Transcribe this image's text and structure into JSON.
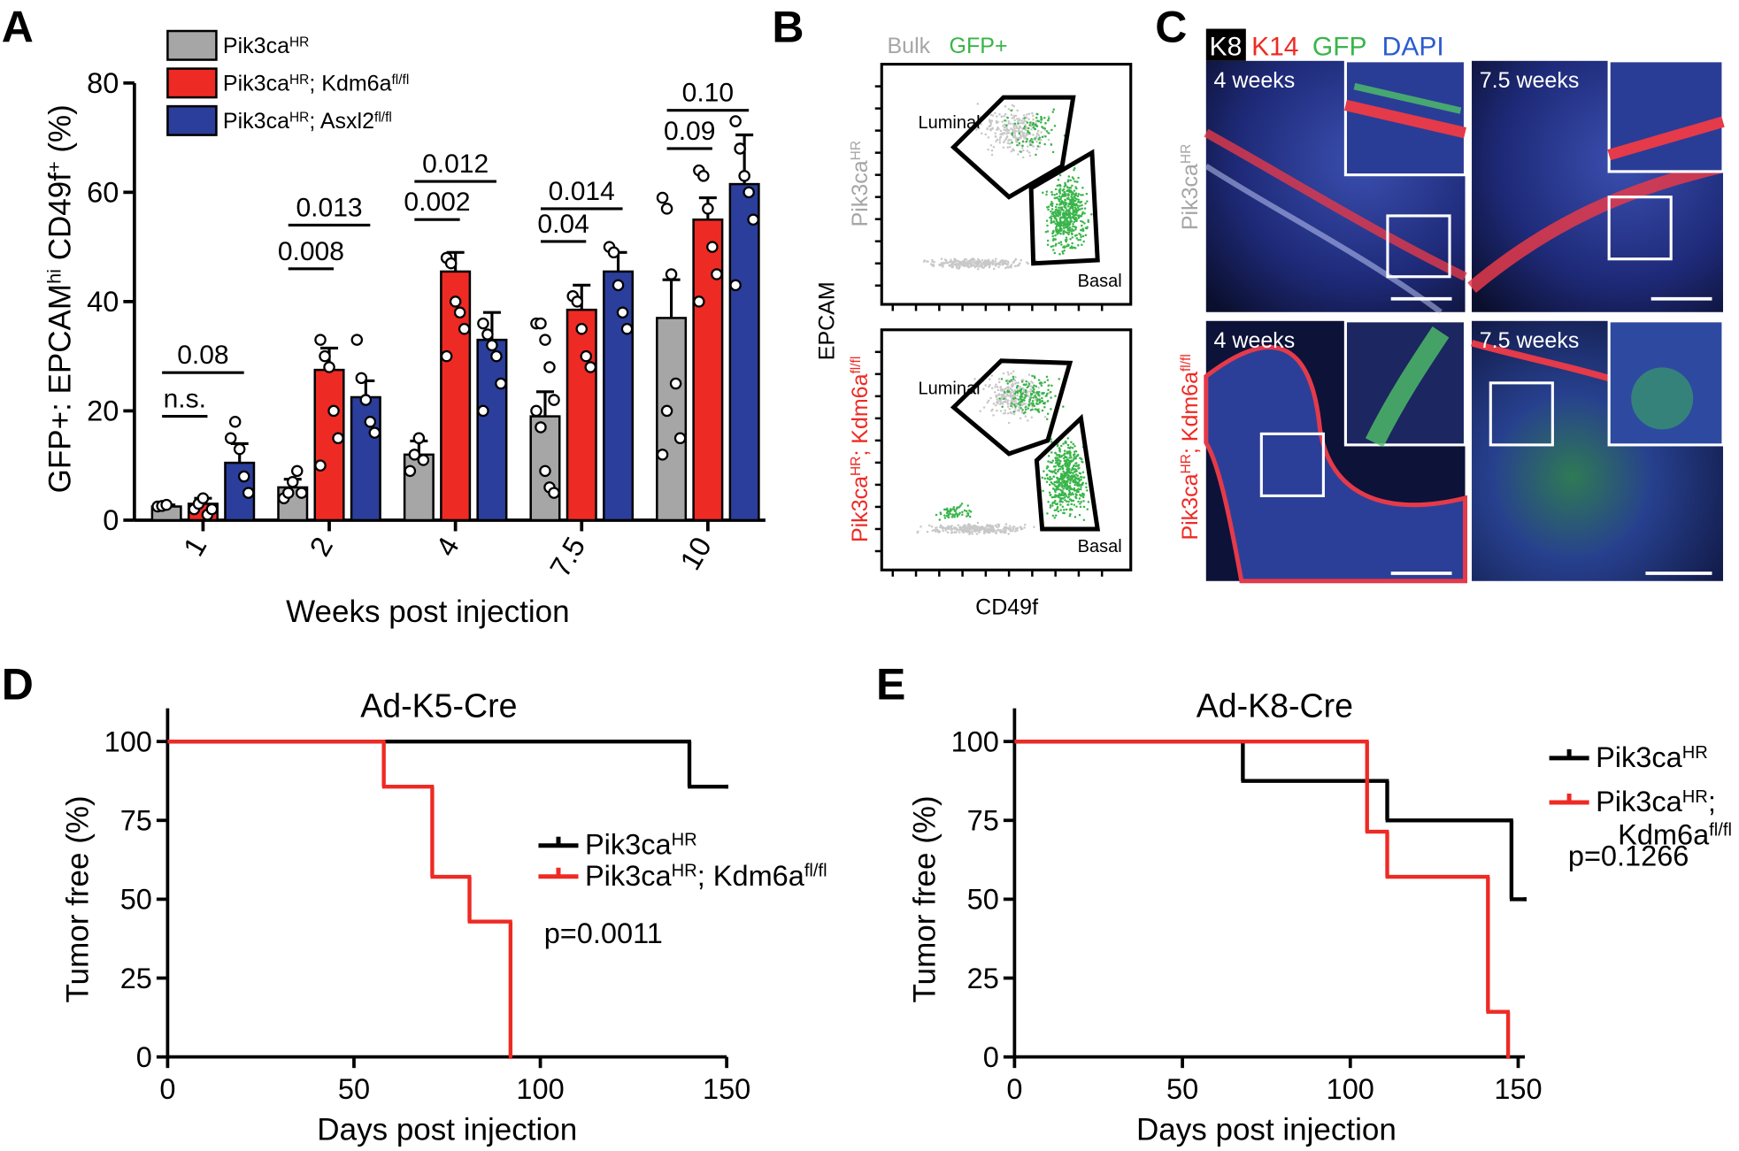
{
  "chart_data": [
    {
      "type": "bar",
      "panel_label": "A",
      "y_label": [
        "GFP+: EPCAM",
        "hi",
        " CD49f",
        "+",
        " (%)"
      ],
      "x_label": "Weeks post injection",
      "categories": [
        "1",
        "2",
        "4",
        "7.5",
        "10"
      ],
      "ylim": [
        0,
        80
      ],
      "yticks": [
        0,
        20,
        40,
        60,
        80
      ],
      "series": [
        {
          "name": [
            "Pik3ca",
            "HR"
          ],
          "color": "#a6a6a6",
          "values": [
            2.5,
            6,
            12,
            19,
            37
          ],
          "errors": [
            0.3,
            1.5,
            2.5,
            4.5,
            7
          ],
          "points": [
            [
              2.5,
              2.6,
              2.8
            ],
            [
              4,
              5,
              7,
              9,
              5
            ],
            [
              9,
              12,
              15,
              11
            ],
            [
              36,
              36,
              33,
              28,
              22,
              20,
              17,
              9,
              6,
              5
            ],
            [
              59,
              57,
              45,
              25,
              15,
              12,
              20
            ]
          ]
        },
        {
          "name": [
            "Pik3ca",
            "HR",
            "; Kdm6a",
            "fl/fl"
          ],
          "color": "#ee2a24",
          "values": [
            3,
            27.5,
            45.5,
            38.5,
            55
          ],
          "errors": [
            1,
            4,
            3.5,
            4.5,
            4
          ],
          "points": [
            [
              2,
              3,
              4,
              1,
              2
            ],
            [
              33,
              30,
              28,
              20,
              15,
              10
            ],
            [
              48,
              47,
              40,
              38,
              35,
              30
            ],
            [
              41,
              40,
              35,
              30,
              28
            ],
            [
              64,
              63,
              57,
              50,
              45,
              40
            ]
          ]
        },
        {
          "name": [
            "Pik3ca",
            "HR",
            "; Asxl2",
            "fl/fl"
          ],
          "color": "#2b3e9b",
          "values": [
            10.5,
            22.5,
            33,
            45.5,
            61.5
          ],
          "errors": [
            3.5,
            3,
            5,
            3.5,
            9
          ],
          "points": [
            [
              15,
              18,
              13,
              8,
              5
            ],
            [
              33,
              26,
              22,
              18,
              16
            ],
            [
              36,
              34,
              32,
              30,
              25,
              20
            ],
            [
              50,
              49,
              43,
              38,
              35
            ],
            [
              73,
              68,
              63,
              60,
              55,
              43
            ]
          ]
        }
      ],
      "annotations": [
        {
          "label": "n.s.",
          "category": 0,
          "series": [
            0,
            1
          ],
          "y": 19
        },
        {
          "label": "0.08",
          "category": 0,
          "series": [
            0,
            2
          ],
          "y": 27
        },
        {
          "label": "0.008",
          "category": 1,
          "series": [
            0,
            1
          ],
          "y": 46
        },
        {
          "label": "0.013",
          "category": 1,
          "series": [
            0,
            2
          ],
          "y": 54
        },
        {
          "label": "0.002",
          "category": 2,
          "series": [
            0,
            1
          ],
          "y": 55
        },
        {
          "label": "0.012",
          "category": 2,
          "series": [
            0,
            2
          ],
          "y": 62
        },
        {
          "label": "0.04",
          "category": 3,
          "series": [
            0,
            1
          ],
          "y": 51
        },
        {
          "label": "0.014",
          "category": 3,
          "series": [
            0,
            2
          ],
          "y": 57
        },
        {
          "label": "0.09",
          "category": 4,
          "series": [
            0,
            1
          ],
          "y": 68
        },
        {
          "label": "0.10",
          "category": 4,
          "series": [
            0,
            2
          ],
          "y": 75
        }
      ]
    },
    {
      "type": "step",
      "panel_label": "D",
      "title": "Ad-K5-Cre",
      "x_label": "Days post injection",
      "y_label": "Tumor free (%)",
      "xlim": [
        0,
        150
      ],
      "xticks": [
        0,
        50,
        100,
        150
      ],
      "ylim": [
        0,
        100
      ],
      "yticks": [
        0,
        25,
        50,
        75,
        100
      ],
      "series": [
        {
          "name": [
            [
              "Pik3ca",
              "HR"
            ]
          ],
          "color": "#000000",
          "x": [
            0,
            140,
            150
          ],
          "values": [
            100,
            85.7,
            85.7
          ]
        },
        {
          "name": [
            [
              "Pik3ca",
              "HR",
              "; Kdm6a",
              "fl/fl"
            ]
          ],
          "color": "#ee2a24",
          "x": [
            0,
            58,
            71,
            81,
            92
          ],
          "values": [
            100,
            85.7,
            57.1,
            42.9,
            0
          ]
        }
      ],
      "p_value": "p=0.0011"
    },
    {
      "type": "step",
      "panel_label": "E",
      "title": "Ad-K8-Cre",
      "x_label": "Days post injection",
      "y_label": "Tumor free (%)",
      "xlim": [
        0,
        152
      ],
      "xticks": [
        0,
        50,
        100,
        150
      ],
      "ylim": [
        0,
        100
      ],
      "yticks": [
        0,
        25,
        50,
        75,
        100
      ],
      "series": [
        {
          "name": [
            [
              "Pik3ca",
              "HR"
            ]
          ],
          "color": "#000000",
          "x": [
            0,
            68,
            111,
            148,
            152
          ],
          "values": [
            100,
            87.5,
            75,
            50,
            50
          ]
        },
        {
          "name": [
            [
              "Pik3ca",
              "HR",
              ";"
            ],
            [
              "Kdm6a",
              "fl/fl"
            ]
          ],
          "color": "#ee2a24",
          "x": [
            0,
            105,
            111,
            141,
            147
          ],
          "values": [
            100,
            71.4,
            57.1,
            14.3,
            0
          ]
        }
      ],
      "p_value": "p=0.1266"
    }
  ],
  "panel_B": {
    "label": "B",
    "legend": [
      "Bulk",
      "GFP+"
    ],
    "x_label": "CD49f",
    "y_label": "EPCAM",
    "rows": [
      {
        "label": [
          "Pik3ca",
          "HR"
        ],
        "gates": [
          "Luminal",
          "Basal"
        ]
      },
      {
        "label": [
          "Pik3ca",
          "HR",
          "; Kdm6a",
          "fl/fl"
        ],
        "gates": [
          "Luminal",
          "Basal"
        ]
      }
    ]
  },
  "panel_C": {
    "label": "C",
    "stains": [
      "K8",
      "K14",
      "GFP",
      "DAPI"
    ],
    "rows": [
      {
        "label": [
          "Pik3ca",
          "HR"
        ],
        "timepoints": [
          "4 weeks",
          "7.5 weeks"
        ]
      },
      {
        "label": [
          "Pik3ca",
          "HR",
          "; Kdm6a",
          "fl/fl"
        ],
        "timepoints": [
          "4 weeks",
          "7.5 weeks"
        ]
      }
    ]
  }
}
